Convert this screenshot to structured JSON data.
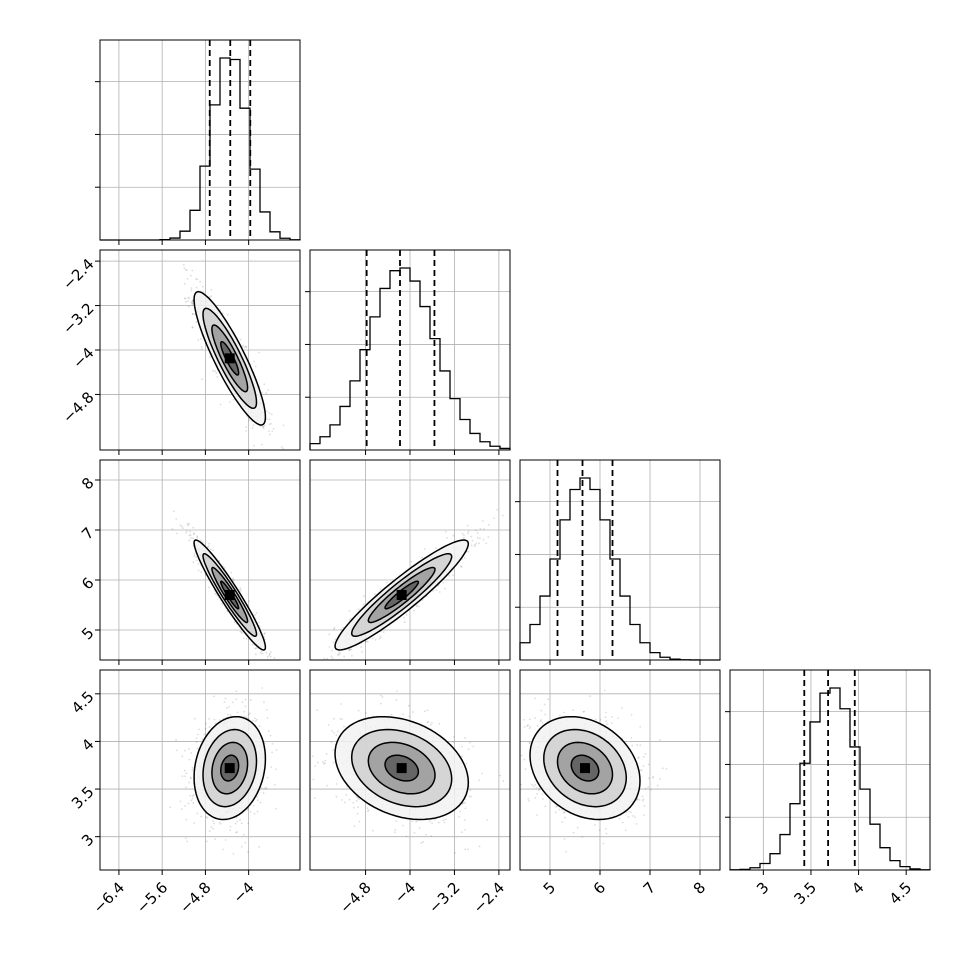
{
  "chart_data": {
    "type": "corner",
    "title": "",
    "parameters": [
      {
        "label": "",
        "mean": -4.35,
        "sd": 0.33,
        "range": [
          -6.75,
          -3.05
        ],
        "ticks": [
          -6.4,
          -5.6,
          -4.8,
          -4.0
        ],
        "quantiles": [
          -4.72,
          -4.34,
          -3.97
        ]
      },
      {
        "label": "",
        "mean": -4.15,
        "sd": 0.6,
        "range": [
          -5.8,
          -2.2
        ],
        "ticks": [
          -4.8,
          -4.0,
          -3.2,
          -2.4
        ],
        "quantiles": [
          -4.78,
          -4.18,
          -3.56
        ]
      },
      {
        "label": "",
        "mean": 5.7,
        "sd": 0.55,
        "range": [
          4.4,
          8.4
        ],
        "ticks": [
          5,
          6,
          7,
          8
        ],
        "quantiles": [
          5.15,
          5.65,
          6.25
        ]
      },
      {
        "label": "",
        "mean": 3.72,
        "sd": 0.27,
        "range": [
          2.65,
          4.75
        ],
        "ticks": [
          3.0,
          3.5,
          4.0,
          4.5
        ],
        "quantiles": [
          3.43,
          3.68,
          3.96
        ]
      }
    ],
    "correlations": [
      [
        1.0,
        -0.88,
        -0.95,
        0.18
      ],
      [
        -0.88,
        1.0,
        0.93,
        -0.28
      ],
      [
        -0.95,
        0.93,
        1.0,
        -0.25
      ],
      [
        0.18,
        -0.28,
        -0.25,
        1.0
      ]
    ],
    "contour_levels_sigma": [
      0.5,
      1.0,
      1.5,
      2.0
    ],
    "histogram_bins": 20,
    "grid": true,
    "legend": "none"
  }
}
